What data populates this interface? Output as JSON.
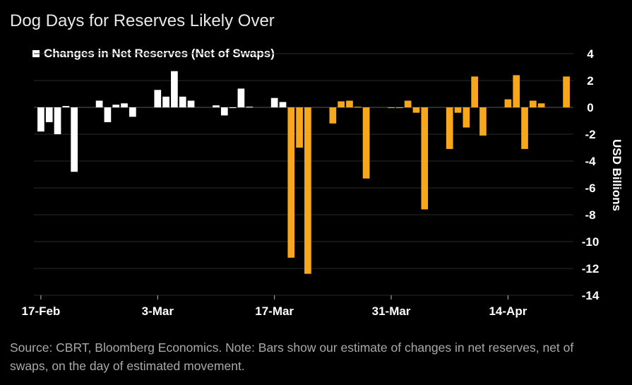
{
  "title": "Dog Days for Reserves Likely Over",
  "footnote": "Source: CBRT, Bloomberg Economics. Note: Bars show our estimate of changes in net reserves, net of swaps, on the day of estimated movement.",
  "colors": {
    "background": "#000000",
    "series_white": "#ffffff",
    "series_orange": "#f7a71b",
    "grid": "#2a2a2a"
  },
  "chart_data": {
    "type": "bar",
    "title": "Dog Days for Reserves Likely Over",
    "ylabel": "USD Billions",
    "ylim": [
      -14,
      4
    ],
    "yticks": [
      4,
      2,
      0,
      -2,
      -4,
      -6,
      -8,
      -10,
      -12,
      -14
    ],
    "xtick_labels": [
      "17-Feb",
      "3-Mar",
      "17-Mar",
      "31-Mar",
      "14-Apr"
    ],
    "xtick_index": [
      0,
      14,
      28,
      42,
      56
    ],
    "legend": [
      "Changes in Net Reserves (Net of Swaps)"
    ],
    "legend_position": "top-left",
    "grid": "horizontal",
    "series": [
      {
        "name": "Changes in Net Reserves (Net of Swaps)",
        "color": "#ffffff",
        "start_index": 0,
        "values": [
          -1.8,
          -1.1,
          -2.0,
          0.1,
          -4.8,
          null,
          null,
          0.5,
          -1.1,
          0.2,
          0.3,
          -0.7,
          null,
          null,
          1.3,
          0.8,
          2.7,
          0.8,
          0.5,
          null,
          null,
          0.15,
          -0.6,
          0.0,
          1.4,
          0.05,
          null,
          null,
          0.7,
          0.4
        ]
      },
      {
        "name": "",
        "color": "#f7a71b",
        "start_index": 30,
        "values": [
          -11.2,
          -3.0,
          -12.4,
          null,
          null,
          -1.2,
          0.45,
          0.5,
          0.05,
          -5.3,
          null,
          null,
          0.0,
          0.0,
          0.5,
          -0.4,
          -7.6,
          null,
          null,
          -3.1,
          -0.4,
          -1.5,
          2.3,
          -2.1,
          null,
          null,
          0.6,
          2.4,
          -3.1,
          0.5,
          0.3,
          null,
          null,
          2.3
        ]
      }
    ]
  }
}
